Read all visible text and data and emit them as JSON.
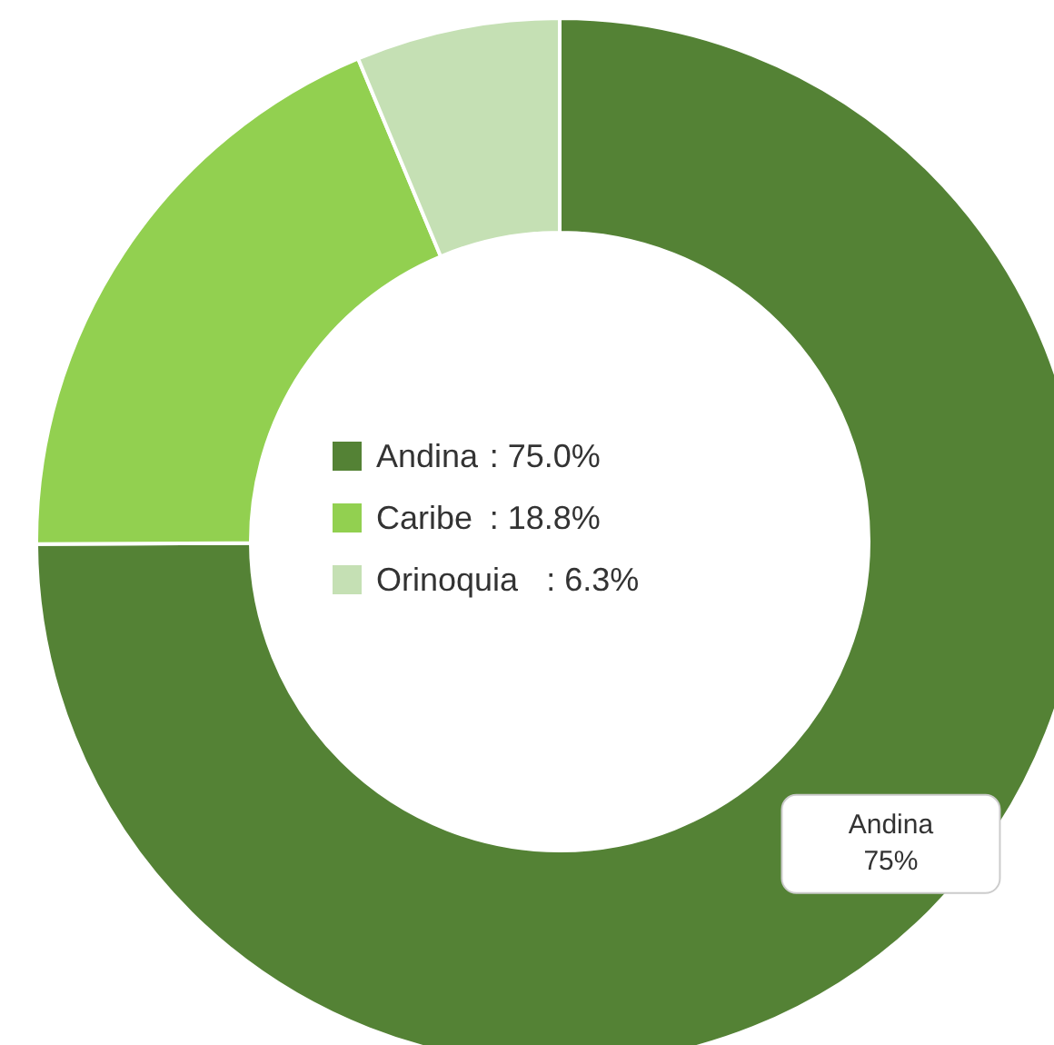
{
  "chart_data": {
    "type": "donut",
    "categories": [
      "Andina",
      "Caribe",
      "Orinoquia"
    ],
    "values": [
      75.0,
      18.8,
      6.3
    ],
    "colors": [
      "#548235",
      "#92d050",
      "#c5e0b4"
    ],
    "legend": "center",
    "value_labels": [
      ": 75.0%",
      ": 18.8%",
      ": 6.3%"
    ],
    "annotations": [
      "Andina\n75%"
    ]
  }
}
